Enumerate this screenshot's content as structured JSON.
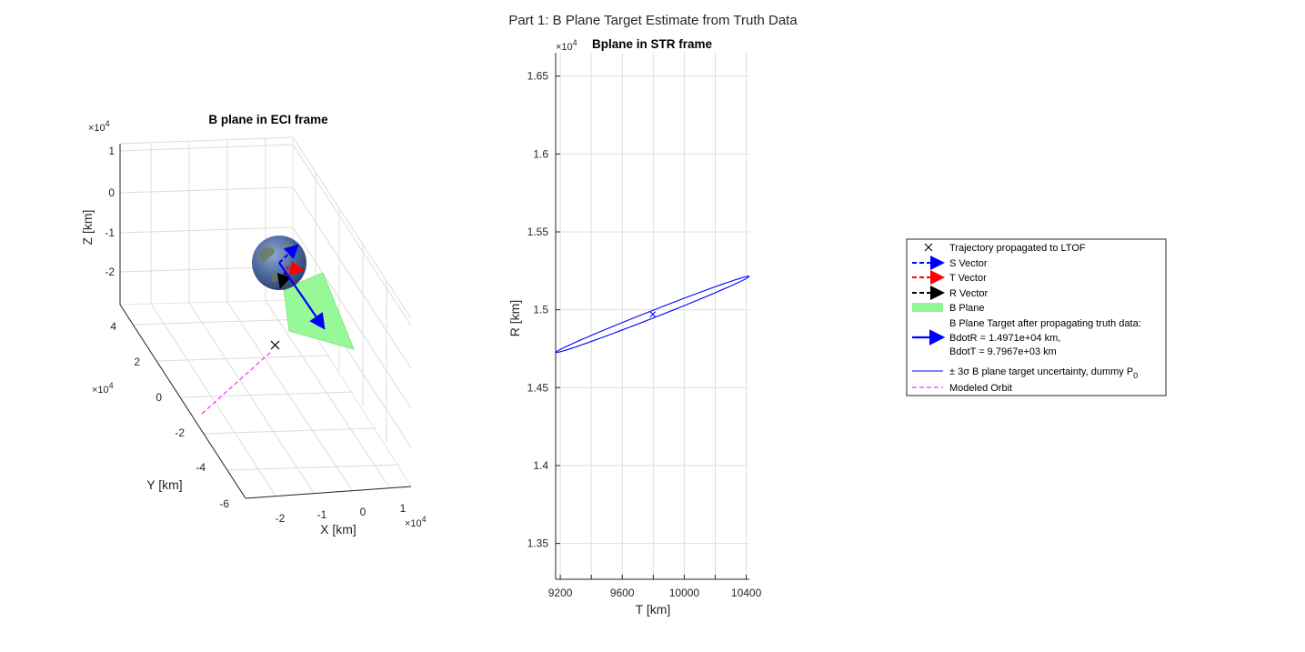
{
  "figure": {
    "suptitle": "Part 1: B Plane Target Estimate from Truth Data"
  },
  "chart_data": [
    {
      "type": "scatter",
      "title": "B plane in ECI frame",
      "xlabel": "X [km]",
      "ylabel": "Y [km]",
      "zlabel": "Z [km]",
      "x_exponent_label": "×10",
      "exponent": "4",
      "x_ticks": [
        "-2",
        "-1",
        "0",
        "1"
      ],
      "y_ticks": [
        "4",
        "2",
        "0",
        "-2",
        "-4",
        "-6"
      ],
      "z_ticks": [
        "1",
        "0",
        "-1",
        "-2"
      ],
      "xlim": [
        -2.5,
        1.5
      ],
      "ylim": [
        -6.5,
        4.5
      ],
      "zlim": [
        -3,
        1
      ],
      "grid": true,
      "earth": {
        "label": "Earth",
        "color": "#4a6aa0"
      },
      "series": [
        {
          "name": "Trajectory propagated to LTOF",
          "marker": "x",
          "color": "#000000"
        },
        {
          "name": "S Vector",
          "color": "#0000ff",
          "style": "dashed"
        },
        {
          "name": "T Vector",
          "color": "#ff0000",
          "style": "dashed"
        },
        {
          "name": "R Vector",
          "color": "#000000",
          "style": "dashed"
        },
        {
          "name": "B Plane",
          "color": "#00ff00",
          "alpha": 0.45
        },
        {
          "name": "B Plane Target",
          "color": "#0000ff",
          "style": "solid"
        },
        {
          "name": "Modeled Orbit",
          "color": "#ff00ff",
          "style": "dashed"
        }
      ]
    },
    {
      "type": "line",
      "title": "Bplane in STR frame",
      "xlabel": "T [km]",
      "ylabel": "R [km]",
      "y_exponent_label": "×10",
      "exponent": "4",
      "xlim": [
        9170,
        10420
      ],
      "ylim": [
        1.327,
        1.665
      ],
      "x_ticks": [
        9200,
        9400,
        9600,
        9800,
        10000,
        10200,
        10400
      ],
      "x_tick_labels": [
        "9200",
        "",
        "9600",
        "",
        "10000",
        "",
        "10400"
      ],
      "y_ticks": [
        1.35,
        1.4,
        1.45,
        1.5,
        1.55,
        1.6,
        1.65
      ],
      "y_tick_labels": [
        "1.35",
        "1.4",
        "1.45",
        "1.5",
        "1.55",
        "1.6",
        "1.65"
      ],
      "grid": true,
      "target": {
        "T": 9796.7,
        "R": 1.4971,
        "marker": "x",
        "color": "#0000ff"
      },
      "ellipse": {
        "name": "± 3σ B plane target uncertainty, dummy P0",
        "color": "#0000ff",
        "center": {
          "T": 9796.7,
          "R": 1.4971
        },
        "semi_major_axis_endpoint": {
          "T": 10420,
          "R": 1.5215
        },
        "semi_minor_scale": 0.035
      }
    }
  ],
  "legend": {
    "position": "right",
    "entries": [
      {
        "label": "Trajectory propagated to LTOF",
        "kind": "x",
        "color": "#000000"
      },
      {
        "label": "S Vector",
        "kind": "dash-arrow",
        "color": "#0000ff"
      },
      {
        "label": "T Vector",
        "kind": "dash-arrow",
        "color": "#ff0000"
      },
      {
        "label": "R Vector",
        "kind": "dash-arrow",
        "color": "#000000"
      },
      {
        "label": "B Plane",
        "kind": "patch",
        "color": "#90f890"
      },
      {
        "label": "B Plane Target after propagating truth data:",
        "kind": "none",
        "color": ""
      },
      {
        "label": "BdotR = 1.4971e+04 km,",
        "kind": "arrow",
        "color": "#0000ff"
      },
      {
        "label": "BdotT = 9.7967e+03 km",
        "kind": "none",
        "color": ""
      },
      {
        "label": "± 3σ B plane target uncertainty, dummy P",
        "sub": "0",
        "kind": "line",
        "color": "#0000ff"
      },
      {
        "label": "Modeled Orbit",
        "kind": "dash",
        "color": "#ff00ff"
      }
    ]
  }
}
